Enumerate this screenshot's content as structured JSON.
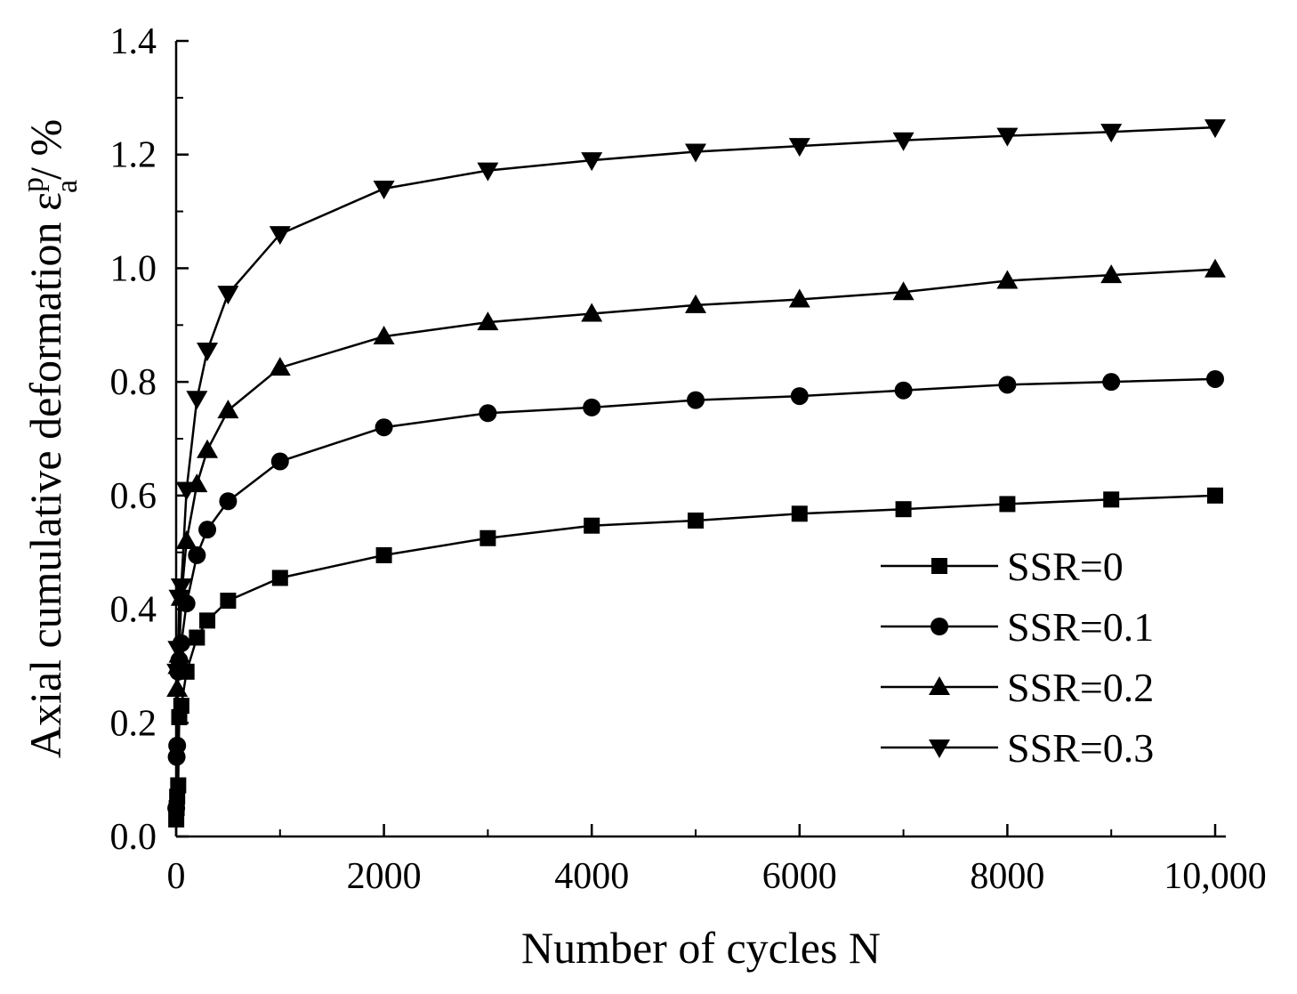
{
  "chart_data": {
    "type": "line",
    "title": "",
    "xlabel": "Number of cycles N",
    "ylabel": {
      "main": "Axial cumulative deformation ε",
      "superscript": "p",
      "subscript": "a",
      "unit": "/ %"
    },
    "xlim": [
      0,
      10000
    ],
    "ylim": [
      0,
      1.4
    ],
    "x_ticks": [
      0,
      2000,
      4000,
      6000,
      8000,
      10000
    ],
    "x_tick_labels": [
      "0",
      "2000",
      "4000",
      "6000",
      "8000",
      "10,000"
    ],
    "y_ticks": [
      0,
      0.2,
      0.4,
      0.6,
      0.8,
      1.0,
      1.2,
      1.4
    ],
    "y_tick_labels": [
      "0.0",
      "0.2",
      "0.4",
      "0.6",
      "0.8",
      "1.0",
      "1.2",
      "1.4"
    ],
    "grid": false,
    "legend_position": "bottom-right",
    "series": [
      {
        "name": "SSR=0",
        "marker": "square",
        "x": [
          1,
          5,
          10,
          20,
          30,
          50,
          100,
          200,
          300,
          500,
          1000,
          2000,
          3000,
          4000,
          5000,
          6000,
          7000,
          8000,
          9000,
          10000
        ],
        "y": [
          0.03,
          0.05,
          0.07,
          0.09,
          0.21,
          0.23,
          0.29,
          0.35,
          0.38,
          0.415,
          0.455,
          0.495,
          0.525,
          0.547,
          0.556,
          0.568,
          0.576,
          0.585,
          0.593,
          0.6
        ]
      },
      {
        "name": "SSR=0.1",
        "marker": "circle",
        "x": [
          1,
          5,
          10,
          20,
          30,
          50,
          100,
          200,
          300,
          500,
          1000,
          2000,
          3000,
          4000,
          5000,
          6000,
          7000,
          8000,
          9000,
          10000
        ],
        "y": [
          0.05,
          0.14,
          0.16,
          0.29,
          0.31,
          0.34,
          0.41,
          0.495,
          0.54,
          0.59,
          0.66,
          0.72,
          0.745,
          0.755,
          0.768,
          0.775,
          0.785,
          0.795,
          0.8,
          0.805
        ]
      },
      {
        "name": "SSR=0.2",
        "marker": "triangle-up",
        "x": [
          10,
          20,
          30,
          50,
          100,
          200,
          300,
          500,
          1000,
          2000,
          3000,
          4000,
          5000,
          6000,
          7000,
          8000,
          9000,
          10000
        ],
        "y": [
          0.26,
          0.3,
          0.32,
          0.42,
          0.52,
          0.62,
          0.68,
          0.75,
          0.825,
          0.88,
          0.905,
          0.92,
          0.935,
          0.945,
          0.958,
          0.978,
          0.988,
          0.998
        ]
      },
      {
        "name": "SSR=0.3",
        "marker": "triangle-down",
        "x": [
          10,
          20,
          30,
          50,
          100,
          200,
          300,
          500,
          1000,
          2000,
          3000,
          4000,
          5000,
          6000,
          7000,
          8000,
          9000,
          10000
        ],
        "y": [
          0.29,
          0.33,
          0.42,
          0.44,
          0.61,
          0.77,
          0.855,
          0.955,
          1.06,
          1.14,
          1.172,
          1.19,
          1.205,
          1.215,
          1.225,
          1.233,
          1.24,
          1.248
        ]
      }
    ]
  }
}
